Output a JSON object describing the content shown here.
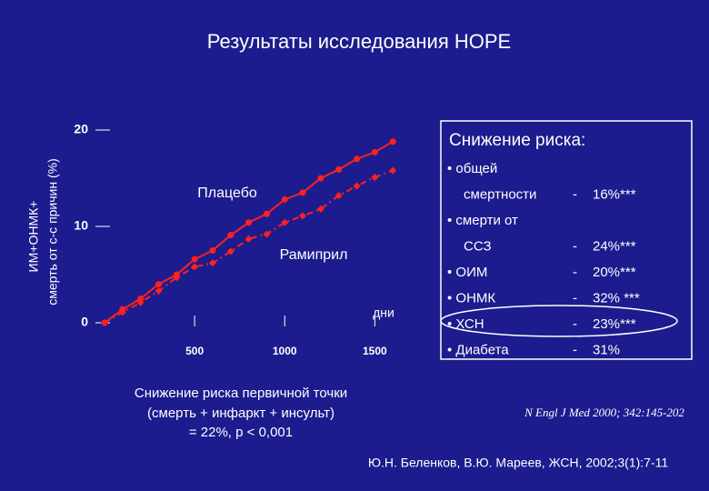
{
  "chart_data": {
    "type": "line",
    "title": "Результаты исследования HOPE",
    "ylabel": [
      "ИМ+ОНМК+",
      "смерть от с-с причин  (%)"
    ],
    "xlabel": "дни",
    "x": [
      0,
      100,
      200,
      300,
      400,
      500,
      600,
      700,
      800,
      900,
      1000,
      1100,
      1200,
      1300,
      1400,
      1500,
      1600
    ],
    "series": [
      {
        "name": "Плацебо",
        "color": "#ff2020",
        "marker": "circle",
        "dash": "solid",
        "values": [
          0,
          1.4,
          2.5,
          4.0,
          5.0,
          6.6,
          7.5,
          9.1,
          10.4,
          11.3,
          12.8,
          13.5,
          15.0,
          15.9,
          17.0,
          17.7,
          18.8
        ]
      },
      {
        "name": "Рамиприл",
        "color": "#ff2020",
        "marker": "diamond",
        "dash": "dashdot",
        "values": [
          0,
          1.1,
          2.1,
          3.3,
          4.7,
          5.8,
          6.2,
          7.4,
          8.7,
          9.2,
          10.4,
          11.1,
          11.8,
          13.2,
          14.2,
          15.1,
          15.8
        ]
      }
    ],
    "xlim": [
      0,
      1700
    ],
    "ylim": [
      0,
      20
    ],
    "xticks": [
      500,
      1000,
      1500
    ],
    "yticks": [
      0,
      10,
      20
    ]
  },
  "risk_box": {
    "title": "Снижение риска:",
    "rows": [
      {
        "label": "• общей"
      },
      {
        "label": "смертности",
        "dash": "-",
        "value": "16%***"
      },
      {
        "label": "• смерти  от"
      },
      {
        "label": "ССЗ",
        "dash": "-",
        "value": "24%***"
      },
      {
        "label": "• ОИМ",
        "dash": "-",
        "value": "20%***"
      },
      {
        "label": "• ОНМК",
        "dash": "-",
        "value": "32% ***"
      },
      {
        "label": "• ХСН",
        "dash": "-",
        "value": "23%***"
      },
      {
        "label": "• Диабета",
        "dash": "-",
        "value": "31%"
      }
    ]
  },
  "note": [
    "Снижение риска  первичной  точки",
    "(смерть + инфаркт + инсульт)",
    "= 22%,  p < 0,001"
  ],
  "citation": "N Engl J Med 2000; 342:145-202",
  "source": "Ю.Н. Беленков, В.Ю. Мареев, ЖСН, 2002;3(1):7-11"
}
